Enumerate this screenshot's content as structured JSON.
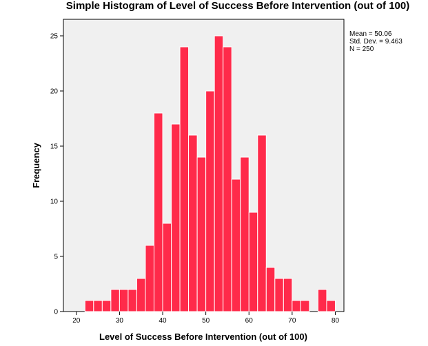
{
  "chart_data": {
    "type": "bar",
    "title": "Simple Histogram of Level of Success Before Intervention (out of 100)",
    "xlabel": "Level of Success Before Intervention (out of 100)",
    "ylabel": "Frequency",
    "xlim": [
      17,
      82
    ],
    "ylim": [
      0,
      26.5
    ],
    "xticks": [
      "20",
      "30",
      "40",
      "50",
      "60",
      "70",
      "80"
    ],
    "yticks": [
      "0",
      "5",
      "10",
      "15",
      "20",
      "25"
    ],
    "bin_width": 2,
    "bins": [
      {
        "start": 22,
        "end": 24,
        "count": 1
      },
      {
        "start": 24,
        "end": 26,
        "count": 1
      },
      {
        "start": 26,
        "end": 28,
        "count": 1
      },
      {
        "start": 28,
        "end": 30,
        "count": 2
      },
      {
        "start": 30,
        "end": 32,
        "count": 2
      },
      {
        "start": 32,
        "end": 34,
        "count": 2
      },
      {
        "start": 34,
        "end": 36,
        "count": 3
      },
      {
        "start": 36,
        "end": 38,
        "count": 6
      },
      {
        "start": 38,
        "end": 40,
        "count": 18
      },
      {
        "start": 40,
        "end": 42,
        "count": 8
      },
      {
        "start": 42,
        "end": 44,
        "count": 17
      },
      {
        "start": 44,
        "end": 46,
        "count": 24
      },
      {
        "start": 46,
        "end": 48,
        "count": 16
      },
      {
        "start": 48,
        "end": 50,
        "count": 14
      },
      {
        "start": 50,
        "end": 52,
        "count": 20
      },
      {
        "start": 52,
        "end": 54,
        "count": 25
      },
      {
        "start": 54,
        "end": 56,
        "count": 24
      },
      {
        "start": 56,
        "end": 58,
        "count": 12
      },
      {
        "start": 58,
        "end": 60,
        "count": 14
      },
      {
        "start": 60,
        "end": 62,
        "count": 9
      },
      {
        "start": 62,
        "end": 64,
        "count": 16
      },
      {
        "start": 64,
        "end": 66,
        "count": 4
      },
      {
        "start": 66,
        "end": 68,
        "count": 3
      },
      {
        "start": 68,
        "end": 70,
        "count": 3
      },
      {
        "start": 70,
        "end": 72,
        "count": 1
      },
      {
        "start": 72,
        "end": 74,
        "count": 1
      },
      {
        "start": 74,
        "end": 76,
        "count": 0
      },
      {
        "start": 76,
        "end": 78,
        "count": 2
      },
      {
        "start": 78,
        "end": 80,
        "count": 1
      }
    ],
    "stats": [
      "Mean = 50.06",
      "Std. Dev. = 9.463",
      "N = 250"
    ],
    "bar_color": "#ff2a4a",
    "plot_background": "#f0f0f0",
    "grid": false,
    "legend": "none"
  }
}
